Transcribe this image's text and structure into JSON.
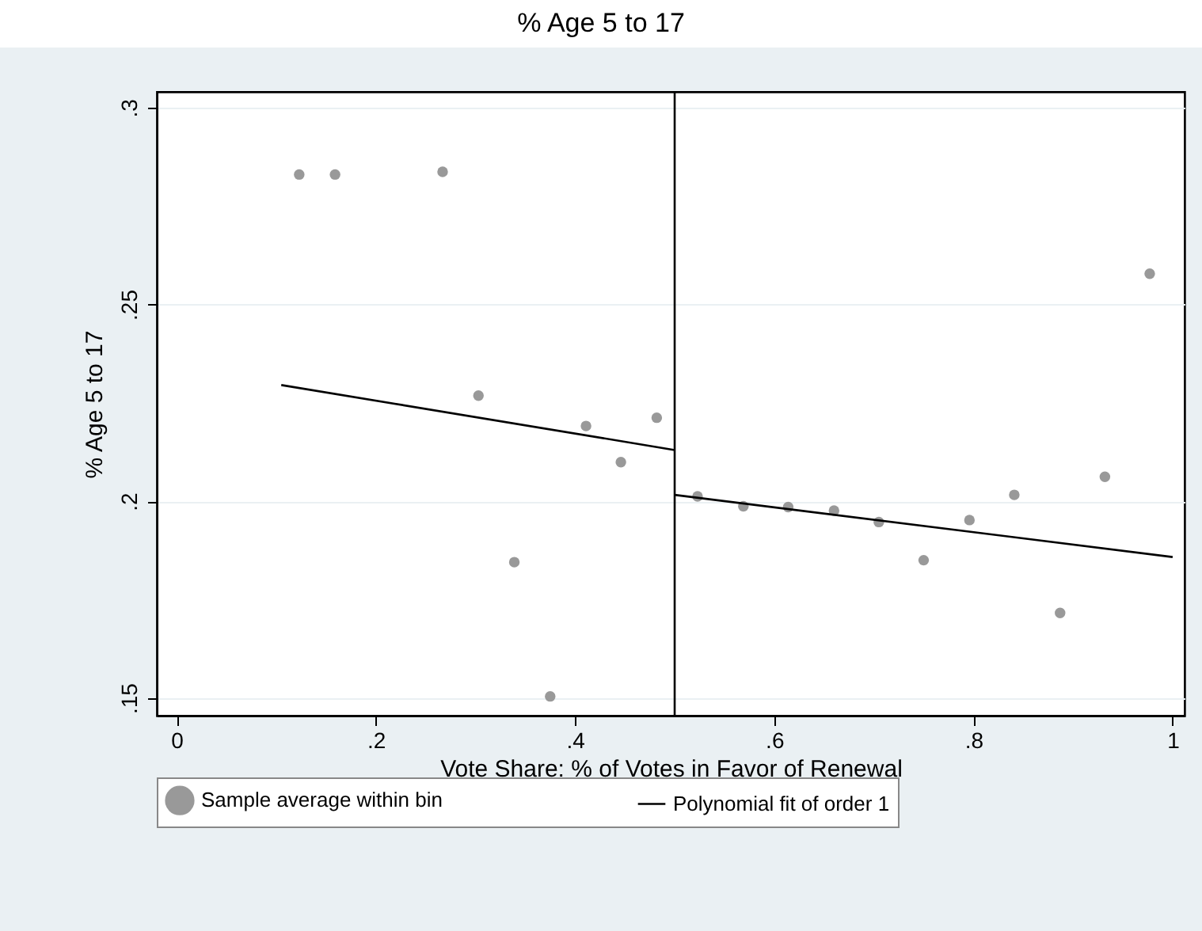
{
  "chart_data": {
    "type": "scatter",
    "title": "% Age 5 to 17",
    "xlabel": "Vote Share: % of Votes in Favor of Renewal",
    "ylabel": "% Age 5 to 17",
    "xlim": [
      -0.02,
      1.012
    ],
    "ylim": [
      0.1455,
      0.304
    ],
    "xticks": [
      0,
      {
        "value": 0.2,
        "label": ".2"
      },
      {
        "value": 0.4,
        "label": ".4"
      },
      {
        "value": 0.6,
        "label": ".6"
      },
      {
        "value": 0.8,
        "label": ".8"
      },
      1
    ],
    "yticks": [
      {
        "value": 0.15,
        "label": ".15"
      },
      {
        "value": 0.2,
        "label": ".2"
      },
      {
        "value": 0.25,
        "label": ".25"
      },
      {
        "value": 0.3,
        "label": ".3"
      }
    ],
    "grid": "y",
    "legend": "bottom",
    "series": [
      {
        "name": "Sample average within bin",
        "marker": "circle",
        "color": "#999999",
        "x": [
          0.123,
          0.159,
          0.267,
          0.303,
          0.339,
          0.375,
          0.411,
          0.446,
          0.482,
          0.523,
          0.569,
          0.614,
          0.66,
          0.705,
          0.75,
          0.796,
          0.841,
          0.887,
          0.932,
          0.977
        ],
        "values": [
          0.283,
          0.283,
          0.2837,
          0.2268,
          0.1845,
          0.1504,
          0.2191,
          0.2099,
          0.2212,
          0.2012,
          0.1987,
          0.1985,
          0.1976,
          0.1947,
          0.185,
          0.1952,
          0.2016,
          0.1716,
          0.2062,
          0.2578
        ]
      },
      {
        "name": "Polynomial fit of order 1",
        "type": "line",
        "color": "#000000",
        "x": [
          0.105,
          0.5
        ],
        "values": [
          0.2295,
          0.213
        ]
      },
      {
        "type": "line",
        "color": "#000000",
        "x": [
          0.5,
          1.0
        ],
        "values": [
          0.2016,
          0.1858
        ]
      }
    ],
    "ref_lines": [
      {
        "axis": "x",
        "value": 0.5,
        "color": "#000000"
      }
    ]
  }
}
